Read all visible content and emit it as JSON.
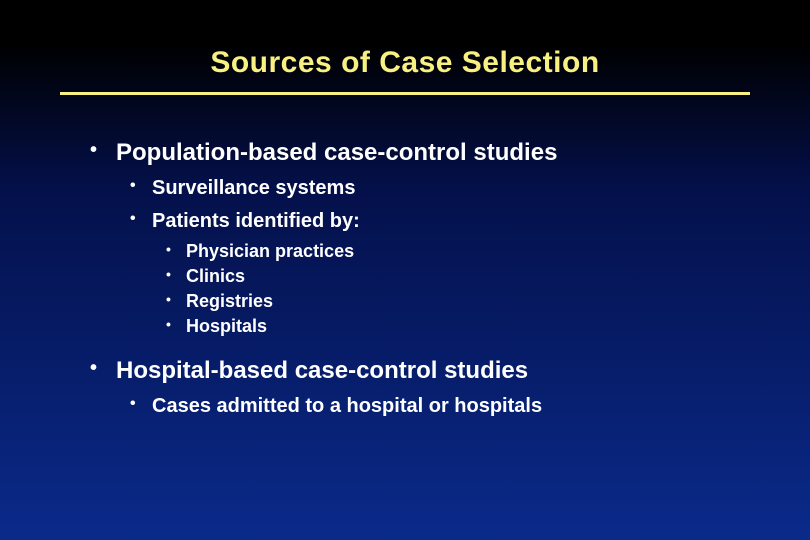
{
  "slide": {
    "title": "Sources of Case Selection",
    "title_color": "#f8f080",
    "title_fontsize": 30,
    "divider_color": "#f8f080",
    "text_color": "#ffffff",
    "background_gradient": [
      "#000000",
      "#04104a",
      "#0a2a8a"
    ],
    "font_family": "Arial",
    "bullets": {
      "lvl1_fontsize": 24,
      "lvl2_fontsize": 20,
      "lvl3_fontsize": 18,
      "items": [
        {
          "text": "Population-based case-control studies",
          "children": [
            {
              "text": "Surveillance systems"
            },
            {
              "text": "Patients identified by:",
              "children": [
                {
                  "text": "Physician practices"
                },
                {
                  "text": "Clinics"
                },
                {
                  "text": "Registries"
                },
                {
                  "text": "Hospitals"
                }
              ]
            }
          ]
        },
        {
          "text": "Hospital-based case-control studies",
          "children": [
            {
              "text": "Cases admitted to a hospital or hospitals"
            }
          ]
        }
      ]
    }
  }
}
